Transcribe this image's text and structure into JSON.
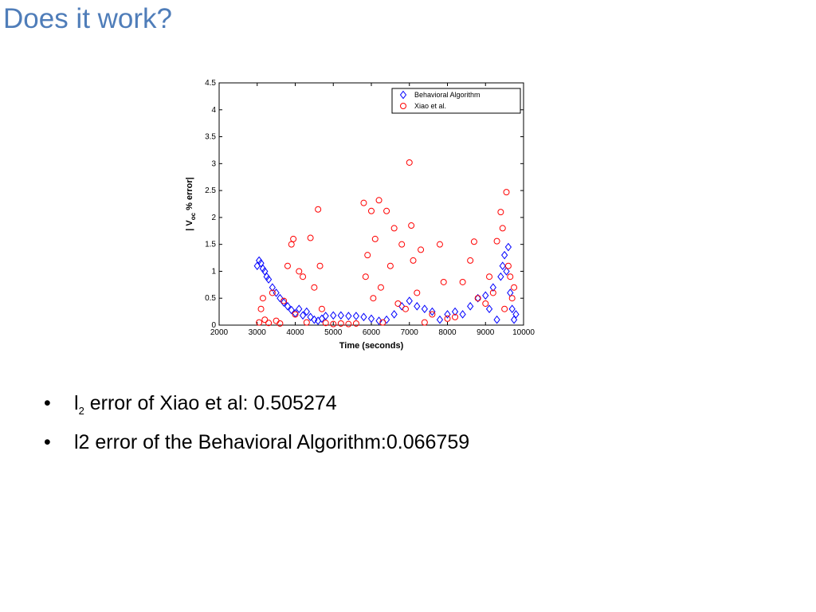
{
  "slide": {
    "title": "Does it work?",
    "bullets": [
      [
        "l",
        "2",
        " error of Xiao et al: 0.505274"
      ],
      "l2 error of the Behavioral Algorithm:0.066759"
    ]
  },
  "chart_data": {
    "type": "scatter",
    "xlabel": "Time (seconds)",
    "ylabel": {
      "main": "| V",
      "sub": "oc",
      "rest": " % error|"
    },
    "xlim": [
      2000,
      10000
    ],
    "xticks": [
      2000,
      3000,
      4000,
      5000,
      6000,
      7000,
      8000,
      9000,
      10000
    ],
    "ylim": [
      0,
      4.5
    ],
    "yticks": [
      0,
      0.5,
      1,
      1.5,
      2,
      2.5,
      3,
      3.5,
      4,
      4.5
    ],
    "legend": "upper right",
    "series": [
      {
        "name": "Behavioral Algorithm",
        "color": "#0000ff",
        "marker": "diamond",
        "x": [
          3000,
          3050,
          3100,
          3150,
          3200,
          3250,
          3300,
          3400,
          3500,
          3600,
          3700,
          3800,
          3900,
          4000,
          4100,
          4200,
          4300,
          4400,
          4500,
          4600,
          4700,
          4800,
          5000,
          5200,
          5400,
          5600,
          5800,
          6000,
          6200,
          6400,
          6600,
          6800,
          7000,
          7200,
          7400,
          7600,
          7800,
          8000,
          8200,
          8400,
          8600,
          8800,
          9000,
          9100,
          9200,
          9300,
          9400,
          9450,
          9500,
          9550,
          9600,
          9650,
          9700,
          9750,
          9800
        ],
        "values": [
          1.1,
          1.2,
          1.15,
          1.05,
          1.0,
          0.9,
          0.85,
          0.7,
          0.6,
          0.5,
          0.42,
          0.35,
          0.28,
          0.22,
          0.3,
          0.18,
          0.25,
          0.15,
          0.1,
          0.08,
          0.12,
          0.17,
          0.18,
          0.18,
          0.17,
          0.17,
          0.15,
          0.12,
          0.08,
          0.1,
          0.2,
          0.35,
          0.45,
          0.35,
          0.3,
          0.25,
          0.1,
          0.2,
          0.25,
          0.2,
          0.35,
          0.5,
          0.55,
          0.3,
          0.7,
          0.1,
          0.9,
          1.1,
          1.3,
          1.0,
          1.45,
          0.6,
          0.3,
          0.1,
          0.2
        ]
      },
      {
        "name": "Xiao et al.",
        "color": "#ff0000",
        "marker": "circle",
        "x": [
          3050,
          3100,
          3150,
          3200,
          3300,
          3400,
          3500,
          3600,
          3700,
          3800,
          3900,
          3950,
          4000,
          4100,
          4200,
          4300,
          4400,
          4500,
          4600,
          4650,
          4700,
          4800,
          5000,
          5200,
          5400,
          5600,
          5800,
          5850,
          5900,
          6000,
          6050,
          6100,
          6200,
          6250,
          6300,
          6400,
          6500,
          6600,
          6700,
          6800,
          6900,
          7000,
          7050,
          7100,
          7200,
          7300,
          7400,
          7600,
          7800,
          7900,
          8000,
          8200,
          8400,
          8600,
          8700,
          8800,
          9000,
          9100,
          9200,
          9300,
          9400,
          9450,
          9500,
          9550,
          9600,
          9650,
          9700,
          9750
        ],
        "values": [
          0.05,
          0.3,
          0.5,
          0.1,
          0.04,
          0.6,
          0.08,
          0.03,
          0.45,
          1.1,
          1.5,
          1.6,
          0.2,
          1.0,
          0.9,
          0.05,
          1.62,
          0.7,
          2.15,
          1.1,
          0.3,
          0.04,
          0.02,
          0.03,
          0.02,
          0.03,
          2.27,
          0.9,
          1.3,
          2.12,
          0.5,
          1.6,
          2.32,
          0.7,
          0.05,
          2.12,
          1.1,
          1.8,
          0.4,
          1.5,
          0.3,
          3.02,
          1.85,
          1.2,
          0.6,
          1.4,
          0.05,
          0.2,
          1.5,
          0.8,
          0.12,
          0.15,
          0.8,
          1.2,
          1.55,
          0.5,
          0.4,
          0.9,
          0.6,
          1.56,
          2.1,
          1.8,
          0.3,
          2.47,
          1.1,
          0.9,
          0.5,
          0.7
        ]
      }
    ]
  }
}
